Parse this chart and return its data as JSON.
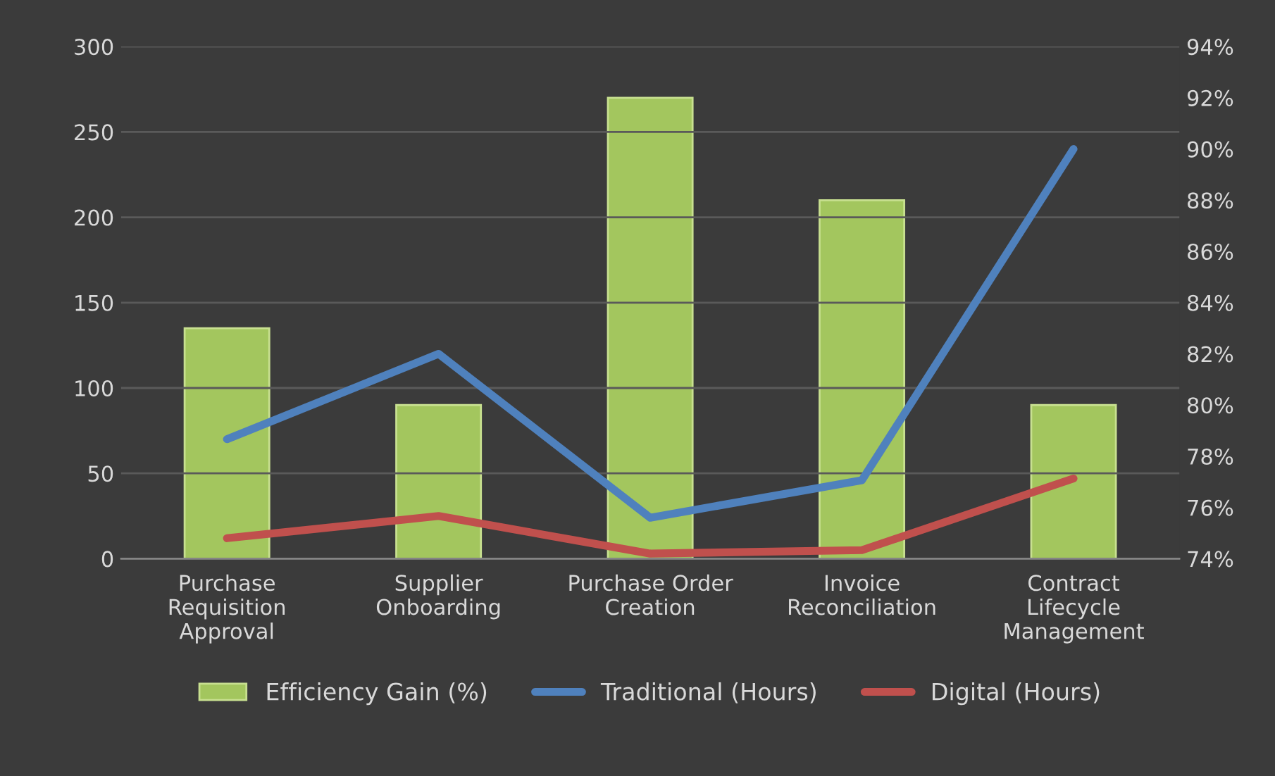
{
  "chart_data": {
    "type": "bar",
    "categories": [
      "Purchase Requisition Approval",
      "Supplier Onboarding",
      "Purchase Order Creation",
      "Invoice Reconciliation",
      "Contract Lifecycle Management"
    ],
    "series": [
      {
        "name": "Efficiency Gain (%)",
        "axis": "y2",
        "color": "#a3c65e",
        "values": [
          83,
          80,
          92,
          88,
          80
        ]
      },
      {
        "name": "Traditional (Hours)",
        "type": "line",
        "color": "#4f81bd",
        "values": [
          70,
          120,
          24,
          46,
          240
        ]
      },
      {
        "name": "Digital (Hours)",
        "type": "line",
        "color": "#c0504d",
        "values": [
          12,
          25,
          3,
          5,
          47
        ]
      }
    ],
    "ylim": [
      0,
      300
    ],
    "yticks": [
      0,
      50,
      100,
      150,
      200,
      250,
      300
    ],
    "y2lim": [
      74,
      94
    ],
    "y2ticks": [
      {
        "value": 74,
        "label": "74%"
      },
      {
        "value": 76,
        "label": "76%"
      },
      {
        "value": 78,
        "label": "78%"
      },
      {
        "value": 80,
        "label": "80%"
      },
      {
        "value": 82,
        "label": "82%"
      },
      {
        "value": 84,
        "label": "84%"
      },
      {
        "value": 86,
        "label": "86%"
      },
      {
        "value": 88,
        "label": "88%"
      },
      {
        "value": 90,
        "label": "90%"
      },
      {
        "value": 92,
        "label": "92%"
      },
      {
        "value": 94,
        "label": "94%"
      }
    ],
    "grid": "y",
    "legend": "bottom"
  }
}
